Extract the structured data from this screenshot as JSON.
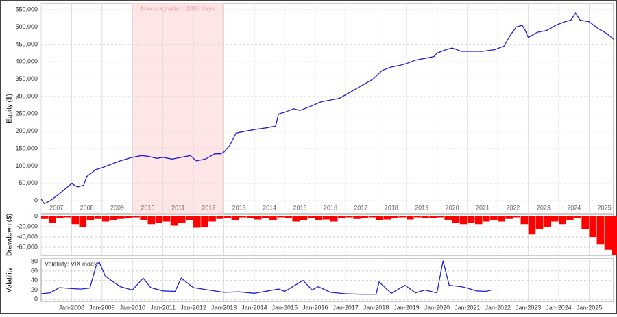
{
  "chart_data": [
    {
      "type": "line",
      "ylabel": "Equity ($)",
      "annotation": "Max stagnation: 1087 days",
      "stagnation": [
        2010.0,
        2012.97
      ],
      "xlim": [
        2007,
        2025.8
      ],
      "xticks": [
        2007,
        2008,
        2009,
        2010,
        2011,
        2012,
        2013,
        2014,
        2015,
        2016,
        2017,
        2018,
        2019,
        2020,
        2021,
        2022,
        2023,
        2024,
        2025
      ],
      "ylim": [
        -37000,
        568000
      ],
      "yticks": [
        0,
        {
          "value": 50000,
          "label": "50,000"
        },
        {
          "value": 100000,
          "label": "100,000"
        },
        {
          "value": 150000,
          "label": "150,000"
        },
        {
          "value": 200000,
          "label": "200,000"
        },
        {
          "value": 250000,
          "label": "250,000"
        },
        {
          "value": 300000,
          "label": "300,000"
        },
        {
          "value": 350000,
          "label": "350,000"
        },
        {
          "value": 400000,
          "label": "400,000"
        },
        {
          "value": 450000,
          "label": "450,000"
        },
        {
          "value": 500000,
          "label": "500,000"
        },
        {
          "value": 550000,
          "label": "550,000"
        }
      ],
      "grid": true,
      "series": [
        {
          "color": "#1f1fd6",
          "x": [
            2007.0,
            2007.1,
            2007.3,
            2007.6,
            2007.8,
            2008.0,
            2008.2,
            2008.4,
            2008.5,
            2008.8,
            2009.0,
            2009.3,
            2009.6,
            2010.0,
            2010.3,
            2010.5,
            2010.8,
            2011.0,
            2011.3,
            2011.6,
            2011.9,
            2012.1,
            2012.4,
            2012.7,
            2012.9,
            2013.0,
            2013.2,
            2013.4,
            2013.7,
            2014.0,
            2014.4,
            2014.7,
            2014.8,
            2015.0,
            2015.3,
            2015.5,
            2015.8,
            2016.2,
            2016.5,
            2016.8,
            2017.0,
            2017.3,
            2017.6,
            2017.9,
            2018.2,
            2018.5,
            2018.8,
            2019.0,
            2019.3,
            2019.6,
            2019.9,
            2020.0,
            2020.3,
            2020.5,
            2020.8,
            2021.0,
            2021.5,
            2021.9,
            2022.2,
            2022.4,
            2022.6,
            2022.8,
            2022.9,
            2023.0,
            2023.3,
            2023.6,
            2023.9,
            2024.2,
            2024.4,
            2024.55,
            2024.7,
            2025.0,
            2025.3,
            2025.6,
            2025.8
          ],
          "values": [
            5000,
            -8000,
            0,
            20000,
            35000,
            50000,
            40000,
            45000,
            70000,
            90000,
            95000,
            105000,
            115000,
            125000,
            130000,
            128000,
            122000,
            125000,
            120000,
            125000,
            130000,
            115000,
            120000,
            135000,
            135000,
            140000,
            160000,
            195000,
            200000,
            205000,
            210000,
            215000,
            250000,
            255000,
            265000,
            260000,
            270000,
            285000,
            290000,
            295000,
            305000,
            320000,
            335000,
            350000,
            375000,
            385000,
            390000,
            395000,
            405000,
            410000,
            415000,
            425000,
            435000,
            440000,
            430000,
            430000,
            430000,
            435000,
            445000,
            475000,
            500000,
            505000,
            490000,
            470000,
            485000,
            490000,
            505000,
            515000,
            520000,
            540000,
            520000,
            515000,
            495000,
            480000,
            465000
          ]
        }
      ]
    },
    {
      "type": "bar",
      "ylabel": "Drawdown ($)",
      "xlim": [
        2007,
        2025.8
      ],
      "ylim": [
        -76000,
        4000
      ],
      "yticks": [
        0,
        {
          "value": -20000,
          "label": "-20,000"
        },
        {
          "value": -40000,
          "label": "-40,000"
        },
        {
          "value": -60000,
          "label": "-60,000"
        }
      ],
      "grid": true,
      "bar_width": 0.25,
      "series": [
        {
          "color": "#ff0000",
          "x": [
            2007.0,
            2007.25,
            2007.5,
            2007.75,
            2008.0,
            2008.25,
            2008.5,
            2008.75,
            2009.0,
            2009.25,
            2009.5,
            2009.75,
            2010.0,
            2010.25,
            2010.5,
            2010.75,
            2011.0,
            2011.25,
            2011.5,
            2011.75,
            2012.0,
            2012.25,
            2012.5,
            2012.75,
            2013.0,
            2013.25,
            2013.5,
            2013.75,
            2014.0,
            2014.25,
            2014.5,
            2014.75,
            2015.0,
            2015.25,
            2015.5,
            2015.75,
            2016.0,
            2016.25,
            2016.5,
            2016.75,
            2017.0,
            2017.25,
            2017.5,
            2017.75,
            2018.0,
            2018.25,
            2018.5,
            2018.75,
            2019.0,
            2019.25,
            2019.5,
            2019.75,
            2020.0,
            2020.25,
            2020.5,
            2020.75,
            2021.0,
            2021.25,
            2021.5,
            2021.75,
            2022.0,
            2022.25,
            2022.5,
            2022.75,
            2023.0,
            2023.25,
            2023.5,
            2023.75,
            2024.0,
            2024.25,
            2024.5,
            2024.75,
            2025.0,
            2025.25,
            2025.5,
            2025.75
          ],
          "values": [
            -5000,
            -12000,
            -3000,
            -2000,
            -15000,
            -20000,
            -8000,
            -5000,
            -10000,
            -8000,
            -5000,
            -3000,
            -2000,
            -8000,
            -15000,
            -12000,
            -10000,
            -18000,
            -12000,
            -8000,
            -22000,
            -20000,
            -10000,
            -5000,
            -3000,
            -8000,
            -2000,
            -4000,
            -6000,
            -3000,
            -8000,
            -2000,
            -3000,
            -10000,
            -8000,
            -4000,
            -8000,
            -6000,
            -10000,
            -3000,
            -2000,
            -5000,
            -3000,
            -2000,
            -8000,
            -6000,
            -3000,
            -2000,
            -6000,
            -2000,
            -4000,
            -3000,
            -2000,
            -8000,
            -12000,
            -15000,
            -12000,
            -15000,
            -10000,
            -8000,
            -10000,
            -5000,
            -2000,
            -15000,
            -35000,
            -25000,
            -20000,
            -10000,
            -15000,
            -8000,
            -3000,
            -25000,
            -40000,
            -55000,
            -65000,
            -75000
          ]
        }
      ]
    },
    {
      "type": "line",
      "ylabel": "Volatility",
      "legend": "Volatility: VIX index",
      "xlim": [
        2007,
        2025.8
      ],
      "xticks": [
        {
          "value": 2008,
          "label": "Jan-2008"
        },
        {
          "value": 2009,
          "label": "Jan-2009"
        },
        {
          "value": 2010,
          "label": "Jan-2010"
        },
        {
          "value": 2011,
          "label": "Jan-2011"
        },
        {
          "value": 2012,
          "label": "Jan-2012"
        },
        {
          "value": 2013,
          "label": "Jan-2013"
        },
        {
          "value": 2014,
          "label": "Jan-2014"
        },
        {
          "value": 2015,
          "label": "Jan-2015"
        },
        {
          "value": 2016,
          "label": "Jan-2016"
        },
        {
          "value": 2017,
          "label": "Jan-2017"
        },
        {
          "value": 2018,
          "label": "Jan-2018"
        },
        {
          "value": 2019,
          "label": "Jan-2019"
        },
        {
          "value": 2020,
          "label": "Jan-2020"
        },
        {
          "value": 2021,
          "label": "Jan-2021"
        },
        {
          "value": 2022,
          "label": "Jan-2022"
        },
        {
          "value": 2023,
          "label": "Jan-2023"
        },
        {
          "value": 2024,
          "label": "Jan-2024"
        },
        {
          "value": 2025,
          "label": "Jan-2025"
        }
      ],
      "ylim": [
        -4,
        86
      ],
      "yticks": [
        0,
        20,
        40,
        60,
        80
      ],
      "grid": true,
      "series": [
        {
          "color": "#1f1fd6",
          "x": [
            2007.0,
            2007.3,
            2007.6,
            2008.0,
            2008.3,
            2008.6,
            2008.8,
            2008.9,
            2009.1,
            2009.3,
            2009.6,
            2010.0,
            2010.35,
            2010.6,
            2011.0,
            2011.4,
            2011.6,
            2011.8,
            2012.0,
            2012.5,
            2013.0,
            2013.5,
            2014.0,
            2014.8,
            2015.0,
            2015.6,
            2015.9,
            2016.1,
            2016.5,
            2017.0,
            2017.5,
            2018.0,
            2018.1,
            2018.5,
            2018.95,
            2019.3,
            2019.6,
            2020.0,
            2020.2,
            2020.4,
            2020.8,
            2021.0,
            2021.3,
            2021.6,
            2021.8
          ],
          "values": [
            12,
            14,
            25,
            23,
            22,
            24,
            70,
            80,
            50,
            40,
            27,
            20,
            45,
            25,
            18,
            17,
            45,
            35,
            25,
            20,
            15,
            16,
            13,
            22,
            17,
            40,
            20,
            27,
            15,
            12,
            11,
            11,
            37,
            13,
            30,
            14,
            20,
            14,
            82,
            30,
            27,
            24,
            18,
            17,
            20
          ]
        }
      ]
    }
  ]
}
